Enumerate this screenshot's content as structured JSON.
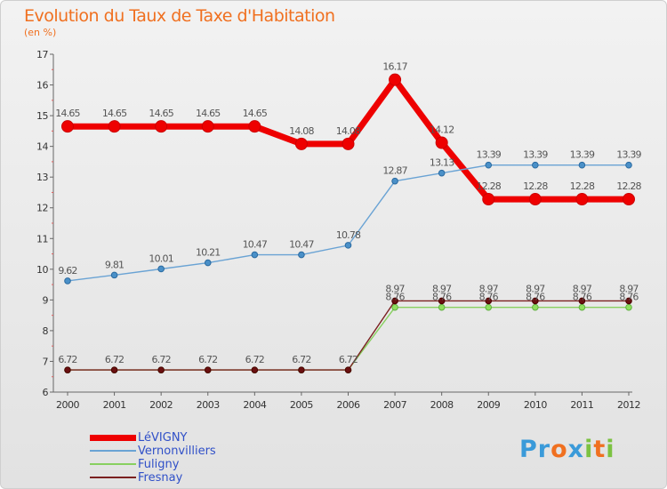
{
  "header": {
    "title": "Evolution du Taux de Taxe d'Habitation",
    "subtitle": "(en %)"
  },
  "logo": {
    "text": "Proxiti"
  },
  "chart_data": {
    "type": "line",
    "title": "Evolution du Taux de Taxe d'Habitation",
    "subtitle": "(en %)",
    "xlabel": "",
    "ylabel": "",
    "x": [
      "2000",
      "2001",
      "2002",
      "2003",
      "2004",
      "2005",
      "2006",
      "2007",
      "2008",
      "2009",
      "2010",
      "2011",
      "2012"
    ],
    "ylim": [
      6,
      17
    ],
    "yticks": [
      "6",
      "7",
      "8",
      "9",
      "10",
      "11",
      "12",
      "13",
      "14",
      "15",
      "16",
      "17"
    ],
    "grid": false,
    "legend_position": "bottom-left",
    "series": [
      {
        "name": "LéVIGNY",
        "color": "#ee0000",
        "values": [
          14.65,
          14.65,
          14.65,
          14.65,
          14.65,
          14.08,
          14.08,
          16.17,
          14.12,
          12.28,
          12.28,
          12.28,
          12.28
        ],
        "labels": [
          "14.65",
          "14.65",
          "14.65",
          "14.65",
          "14.65",
          "14.08",
          "14.08",
          "16.17",
          "14.12",
          "12.28",
          "12.28",
          "12.28",
          "12.28"
        ]
      },
      {
        "name": "Vernonvilliers",
        "color": "#6aa3d4",
        "values": [
          9.62,
          9.81,
          10.01,
          10.21,
          10.47,
          10.47,
          10.78,
          12.87,
          13.13,
          13.39,
          13.39,
          13.39,
          13.39
        ],
        "labels": [
          "9.62",
          "9.81",
          "10.01",
          "10.21",
          "10.47",
          "10.47",
          "10.78",
          "12.87",
          "13.13",
          "13.39",
          "13.39",
          "13.39",
          "13.39"
        ]
      },
      {
        "name": "Fuligny",
        "color": "#88d060",
        "values": [
          6.72,
          6.72,
          6.72,
          6.72,
          6.72,
          6.72,
          6.72,
          8.76,
          8.76,
          8.76,
          8.76,
          8.76,
          8.76
        ],
        "labels": [
          "",
          "",
          "",
          "",
          "",
          "",
          "",
          "8.76",
          "8.76",
          "8.76",
          "8.76",
          "8.76",
          "8.76"
        ]
      },
      {
        "name": "Fresnay",
        "color": "#7a2020",
        "values": [
          6.72,
          6.72,
          6.72,
          6.72,
          6.72,
          6.72,
          6.72,
          8.97,
          8.97,
          8.97,
          8.97,
          8.97,
          8.97
        ],
        "labels": [
          "6.72",
          "6.72",
          "6.72",
          "6.72",
          "6.72",
          "6.72",
          "6.72",
          "8.97",
          "8.97",
          "8.97",
          "8.97",
          "8.97",
          "8.97"
        ]
      }
    ]
  }
}
